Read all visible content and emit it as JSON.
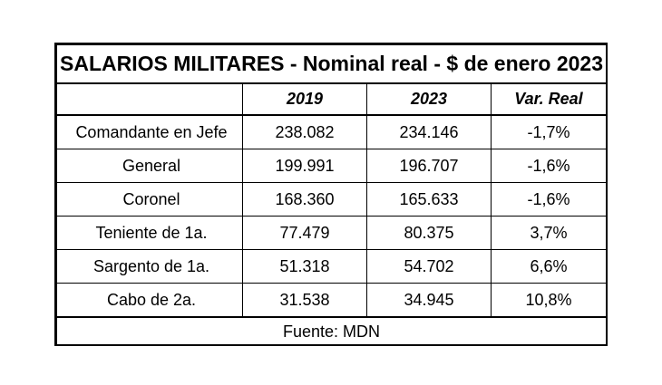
{
  "table": {
    "title": "SALARIOS MILITARES - Nominal real - $ de enero 2023",
    "headers": [
      "",
      "2019",
      "2023",
      "Var. Real"
    ],
    "rows": [
      [
        "Comandante en Jefe",
        "238.082",
        "234.146",
        "-1,7%"
      ],
      [
        "General",
        "199.991",
        "196.707",
        "-1,6%"
      ],
      [
        "Coronel",
        "168.360",
        "165.633",
        "-1,6%"
      ],
      [
        "Teniente de 1a.",
        "77.479",
        "80.375",
        "3,7%"
      ],
      [
        "Sargento de 1a.",
        "51.318",
        "54.702",
        "6,6%"
      ],
      [
        "Cabo de 2a.",
        "31.538",
        "34.945",
        "10,8%"
      ]
    ],
    "source": "Fuente: MDN"
  }
}
